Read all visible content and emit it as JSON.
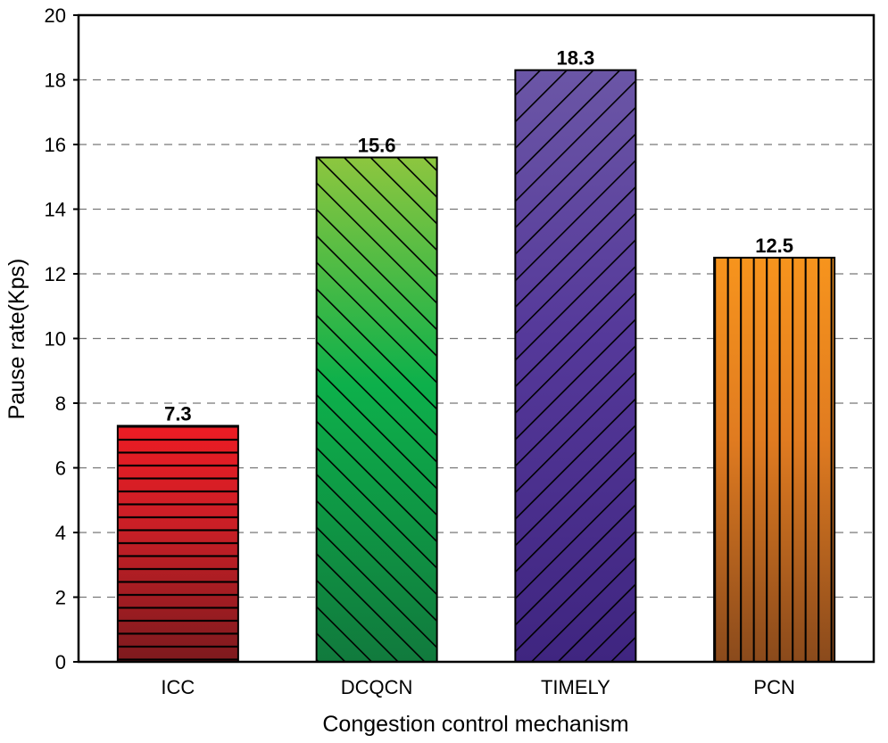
{
  "chart_data": {
    "type": "bar",
    "categories": [
      "ICC",
      "DCQCN",
      "TIMELY",
      "PCN"
    ],
    "values": [
      7.3,
      15.6,
      18.3,
      12.5
    ],
    "data_labels": [
      "7.3",
      "15.6",
      "18.3",
      "12.5"
    ],
    "title": "",
    "xlabel": "Congestion control mechanism",
    "ylabel": "Pause rate(Kps)",
    "ylim": [
      0,
      20
    ],
    "yticks": [
      "0",
      "2",
      "4",
      "6",
      "8",
      "10",
      "12",
      "14",
      "16",
      "18",
      "20"
    ],
    "grid": "horizontal dashed",
    "bar_styles": [
      {
        "hatch": "horizontal",
        "top": "#ed1c24",
        "mid": "#c71f26",
        "bottom": "#7d1a1e"
      },
      {
        "hatch": "backslash",
        "top": "#8dc63f",
        "mid": "#0db04b",
        "bottom": "#117a3d"
      },
      {
        "hatch": "slash",
        "top": "#6b56a6",
        "mid": "#55399a",
        "bottom": "#3f2580"
      },
      {
        "hatch": "vertical",
        "top": "#f7941d",
        "mid": "#e07b20",
        "bottom": "#8a4a1c"
      }
    ]
  }
}
